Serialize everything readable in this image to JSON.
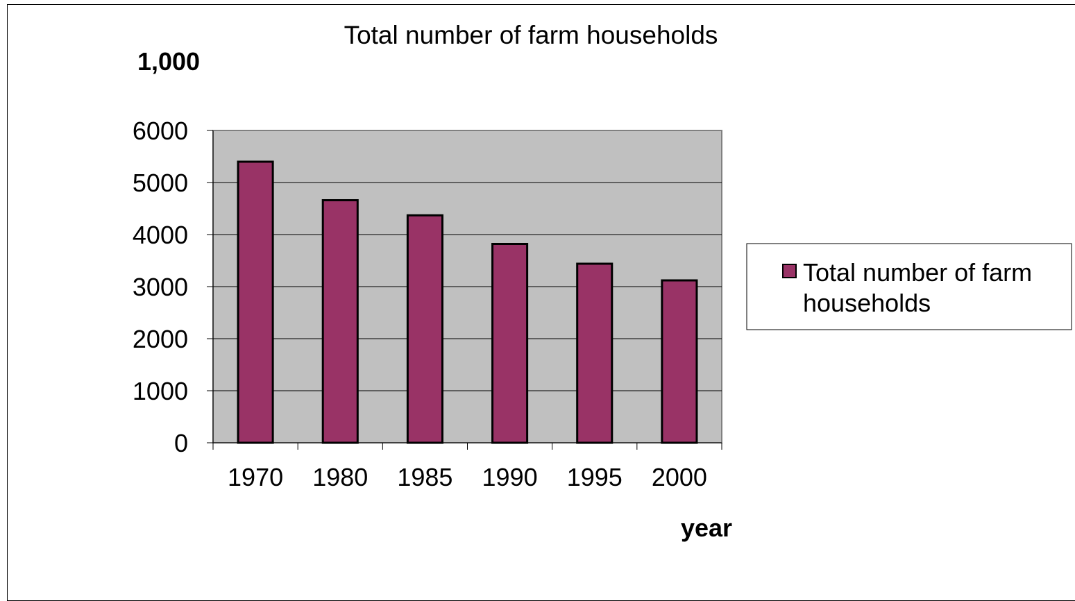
{
  "chart_data": {
    "type": "bar",
    "title": "Total number of farm households",
    "ylabel": "1,000",
    "xlabel": "year",
    "categories": [
      "1970",
      "1980",
      "1985",
      "1990",
      "1995",
      "2000"
    ],
    "series": [
      {
        "name": "Total number of farm households",
        "values": [
          5400,
          4660,
          4370,
          3820,
          3440,
          3120
        ]
      }
    ],
    "ylim": [
      0,
      6000
    ],
    "yticks": [
      0,
      1000,
      2000,
      3000,
      4000,
      5000,
      6000
    ],
    "grid": true,
    "legend_position": "right",
    "colors": {
      "bar": "#993366",
      "plot_background": "#C0C0C0",
      "gridline": "#000000"
    }
  }
}
